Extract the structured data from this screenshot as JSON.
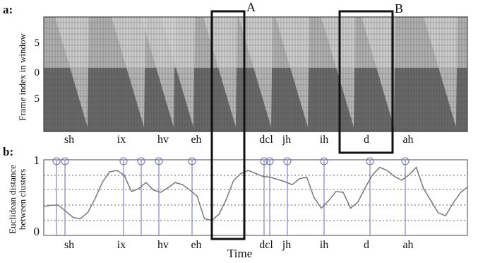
{
  "figure": {
    "panel_a": {
      "label": "a:",
      "ylabel": "Frame index in window",
      "yticks": [
        "5",
        "0",
        "5"
      ],
      "phones": [
        "sh",
        "ix",
        "hv",
        "eh",
        "dcl",
        "jh",
        "ih",
        "d",
        "ah"
      ],
      "box_a_label": "A",
      "box_b_label": "B"
    },
    "panel_b": {
      "label": "b:",
      "ylabel_line1": "Euclidean distance",
      "ylabel_line2": "between clusters",
      "yticks": [
        "1",
        "0"
      ],
      "phones": [
        "sh",
        "ix",
        "hv",
        "eh",
        "dcl",
        "jh",
        "ih",
        "d",
        "ah"
      ],
      "xlabel": "Time"
    },
    "colors": {
      "panel_a_fill": "#686868",
      "curve": "#777777",
      "boundary": "#6a6ab8",
      "box": "#111111"
    }
  },
  "chart_data": {
    "type": "line",
    "title": "",
    "xlabel": "Time",
    "ylabel": "Euclidean distance between clusters",
    "ylim": [
      0,
      1
    ],
    "grid": "dotted horizontal",
    "y_relative": [
      0.38,
      0.4,
      0.4,
      0.32,
      0.24,
      0.22,
      0.3,
      0.48,
      0.7,
      0.84,
      0.86,
      0.8,
      0.58,
      0.62,
      0.7,
      0.6,
      0.57,
      0.63,
      0.7,
      0.67,
      0.6,
      0.52,
      0.22,
      0.2,
      0.28,
      0.48,
      0.73,
      0.82,
      0.86,
      0.82,
      0.78,
      0.77,
      0.74,
      0.71,
      0.67,
      0.75,
      0.77,
      0.5,
      0.36,
      0.46,
      0.58,
      0.57,
      0.36,
      0.44,
      0.63,
      0.8,
      0.9,
      0.86,
      0.78,
      0.73,
      0.8,
      0.9,
      0.62,
      0.46,
      0.3,
      0.26,
      0.42,
      0.56,
      0.64
    ]
  }
}
